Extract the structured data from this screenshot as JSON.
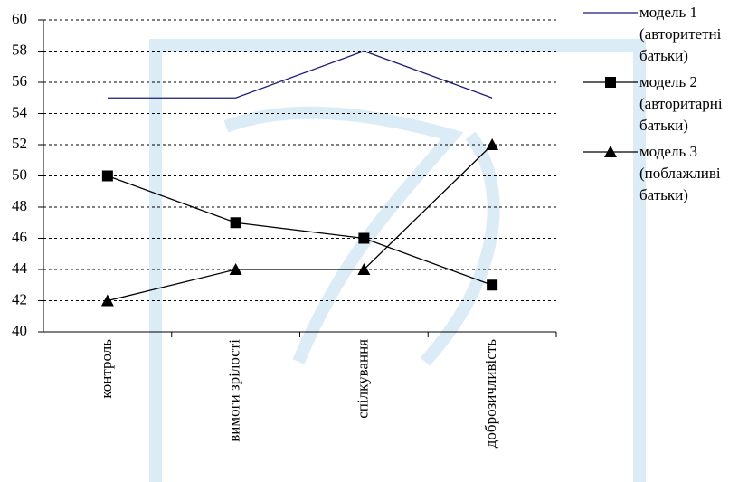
{
  "chart_data": {
    "type": "line",
    "categories": [
      "контроль",
      "вимоги зрілості",
      "спілкування",
      "доброзичливість"
    ],
    "series": [
      {
        "name": "модель 1 (авторитетні батьки)",
        "color": "#1c1c78",
        "marker": "none",
        "values": [
          55,
          55,
          58,
          55
        ]
      },
      {
        "name": "модель 2 (авторитарні батьки)",
        "color": "#000000",
        "marker": "square",
        "values": [
          50,
          47,
          46,
          43
        ]
      },
      {
        "name": "модель 3 (поблажливі батьки)",
        "color": "#000000",
        "marker": "triangle",
        "values": [
          42,
          44,
          44,
          52
        ]
      }
    ],
    "ylim": [
      40,
      60
    ],
    "yticks": [
      40,
      42,
      44,
      46,
      48,
      50,
      52,
      54,
      56,
      58,
      60
    ],
    "grid": true,
    "legend": "right"
  }
}
